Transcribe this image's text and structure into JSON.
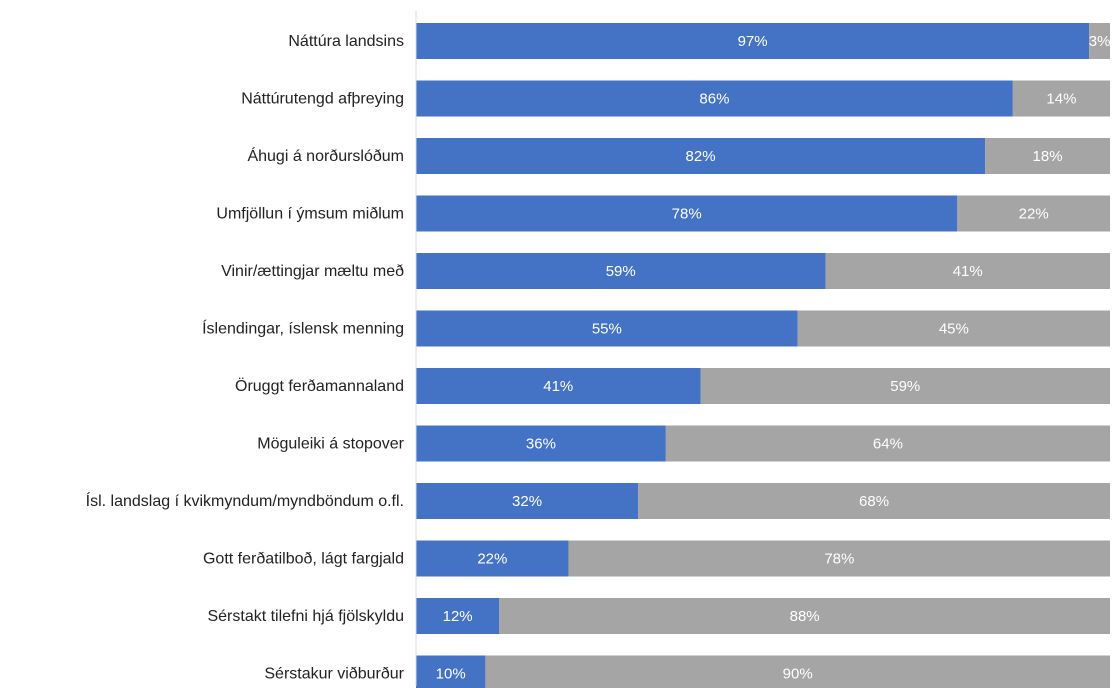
{
  "chart_data": {
    "type": "bar",
    "orientation": "horizontal",
    "stacked": true,
    "percent_stacked": true,
    "categories": [
      "Náttúra landsins",
      "Náttúrutengd afþreying",
      "Áhugi á norðurslóðum",
      "Umfjöllun í ýmsum miðlum",
      "Vinir/ættingjar mæltu með",
      "Íslendingar, íslensk menning",
      "Öruggt ferðamannaland",
      "Möguleiki á stopover",
      "Ísl. landslag í kvikmyndum/myndböndum o.fl.",
      "Gott ferðatilboð, lágt fargjald",
      "Sérstakt tilefni hjá fjölskyldu",
      "Sérstakur viðburður"
    ],
    "series": [
      {
        "values": [
          97,
          86,
          82,
          78,
          59,
          55,
          41,
          36,
          32,
          22,
          12,
          10
        ],
        "labels": [
          "97%",
          "86%",
          "82%",
          "78%",
          "59%",
          "55%",
          "41%",
          "36%",
          "32%",
          "22%",
          "12%",
          "10%"
        ],
        "color": "#4472C4"
      },
      {
        "values": [
          3,
          14,
          18,
          22,
          41,
          45,
          59,
          64,
          68,
          78,
          88,
          90
        ],
        "labels": [
          "3%",
          "14%",
          "18%",
          "22%",
          "41%",
          "45%",
          "59%",
          "64%",
          "68%",
          "78%",
          "88%",
          "90%"
        ],
        "color": "#A5A5A5"
      }
    ],
    "xlim": [
      0,
      100
    ],
    "grid": false,
    "legend": "none",
    "axis_line_color": "#D9D9D9"
  }
}
